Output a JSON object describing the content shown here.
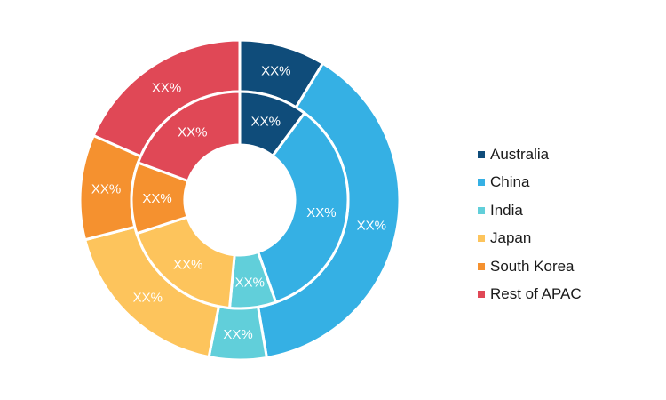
{
  "chart_data": {
    "type": "pie",
    "subtype": "nested-donut",
    "categories": [
      "Australia",
      "China",
      "India",
      "Japan",
      "South Korea",
      "Rest of APAC"
    ],
    "colors": [
      "#0f4c7a",
      "#35b0e4",
      "#61cfda",
      "#fdc45c",
      "#f5912f",
      "#e04856"
    ],
    "series": [
      {
        "ring": "outer",
        "values": [
          8.7,
          38.6,
          5.8,
          17.9,
          10.6,
          18.4
        ],
        "labels": [
          "XX%",
          "XX%",
          "XX%",
          "XX%",
          "XX%",
          "XX%"
        ]
      },
      {
        "ring": "inner",
        "values": [
          10.2,
          34.4,
          6.9,
          18.5,
          10.6,
          19.4
        ],
        "labels": [
          "XX%",
          "XX%",
          "XX%",
          "XX%",
          "XX%",
          "XX%"
        ]
      }
    ],
    "legend": {
      "position": "right",
      "entries": [
        "Australia",
        "China",
        "India",
        "Japan",
        "South Korea",
        "Rest of APAC"
      ]
    }
  }
}
